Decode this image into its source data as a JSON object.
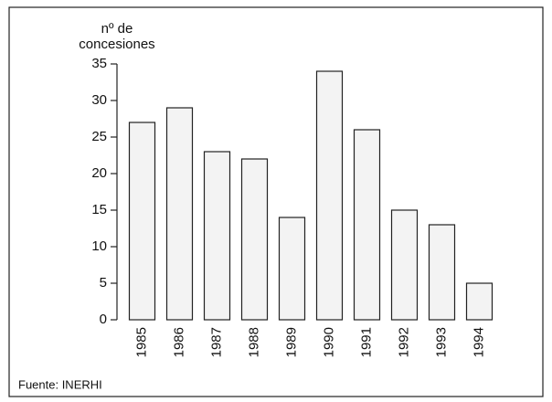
{
  "chart_data": {
    "type": "bar",
    "y_label": [
      "nº de",
      "concesiones"
    ],
    "categories": [
      "1985",
      "1986",
      "1987",
      "1988",
      "1989",
      "1990",
      "1991",
      "1992",
      "1993",
      "1994"
    ],
    "values": [
      27,
      29,
      23,
      22,
      14,
      34,
      26,
      15,
      13,
      5
    ],
    "color": "#f3f3f3",
    "ylim": [
      0,
      35
    ],
    "yticks": [
      0,
      5,
      10,
      15,
      20,
      25,
      30,
      35
    ],
    "grid": false,
    "source": "Fuente: INERHI"
  }
}
